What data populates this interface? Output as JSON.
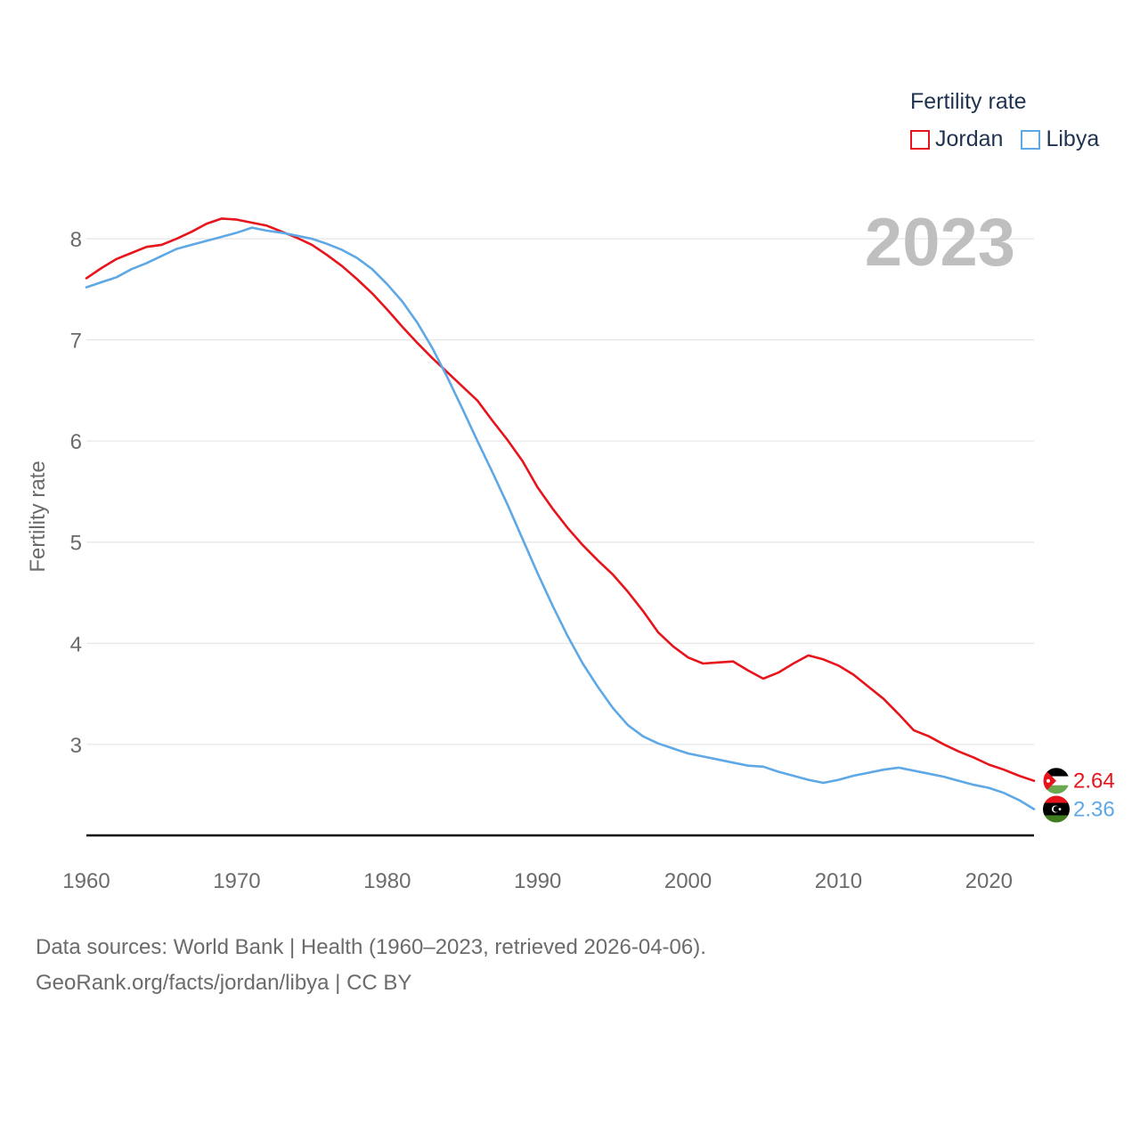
{
  "chart_data": {
    "type": "line",
    "title": "",
    "ylabel": "Fertility rate",
    "xlabel": "",
    "year_label": "2023",
    "xlim": [
      1960,
      2023
    ],
    "ylim": [
      2.1,
      8.6
    ],
    "x_ticks": [
      1960,
      1970,
      1980,
      1990,
      2000,
      2010,
      2020
    ],
    "y_ticks": [
      3,
      4,
      5,
      6,
      7,
      8
    ],
    "legend_title": "Fertility rate",
    "legend_position": "top-right",
    "x": [
      1960,
      1961,
      1962,
      1963,
      1964,
      1965,
      1966,
      1967,
      1968,
      1969,
      1970,
      1971,
      1972,
      1973,
      1974,
      1975,
      1976,
      1977,
      1978,
      1979,
      1980,
      1981,
      1982,
      1983,
      1984,
      1985,
      1986,
      1987,
      1988,
      1989,
      1990,
      1991,
      1992,
      1993,
      1994,
      1995,
      1996,
      1997,
      1998,
      1999,
      2000,
      2001,
      2002,
      2003,
      2004,
      2005,
      2006,
      2007,
      2008,
      2009,
      2010,
      2011,
      2012,
      2013,
      2014,
      2015,
      2016,
      2017,
      2018,
      2019,
      2020,
      2021,
      2022,
      2023
    ],
    "series": [
      {
        "name": "Jordan",
        "color": "#e8141c",
        "end_label": "2.64",
        "values": [
          7.61,
          7.71,
          7.8,
          7.86,
          7.92,
          7.94,
          8.0,
          8.07,
          8.15,
          8.2,
          8.19,
          8.16,
          8.13,
          8.07,
          8.01,
          7.94,
          7.84,
          7.73,
          7.6,
          7.46,
          7.3,
          7.13,
          6.97,
          6.82,
          6.68,
          6.54,
          6.4,
          6.2,
          6.01,
          5.8,
          5.54,
          5.33,
          5.14,
          4.97,
          4.82,
          4.68,
          4.51,
          4.32,
          4.11,
          3.97,
          3.86,
          3.8,
          3.81,
          3.82,
          3.73,
          3.65,
          3.71,
          3.8,
          3.88,
          3.84,
          3.78,
          3.69,
          3.57,
          3.45,
          3.3,
          3.14,
          3.08,
          3.0,
          2.93,
          2.87,
          2.8,
          2.75,
          2.69,
          2.64
        ]
      },
      {
        "name": "Libya",
        "color": "#5ea8e6",
        "end_label": "2.36",
        "values": [
          7.52,
          7.57,
          7.62,
          7.7,
          7.76,
          7.83,
          7.9,
          7.94,
          7.98,
          8.02,
          8.06,
          8.11,
          8.08,
          8.06,
          8.03,
          8.0,
          7.95,
          7.89,
          7.81,
          7.7,
          7.55,
          7.38,
          7.17,
          6.92,
          6.63,
          6.32,
          6.0,
          5.69,
          5.37,
          5.03,
          4.69,
          4.37,
          4.07,
          3.8,
          3.57,
          3.36,
          3.19,
          3.08,
          3.01,
          2.96,
          2.91,
          2.88,
          2.85,
          2.82,
          2.79,
          2.78,
          2.73,
          2.69,
          2.65,
          2.62,
          2.65,
          2.69,
          2.72,
          2.75,
          2.77,
          2.74,
          2.71,
          2.68,
          2.64,
          2.6,
          2.57,
          2.52,
          2.45,
          2.36
        ]
      }
    ]
  },
  "sources": {
    "line1": "Data sources: World Bank | Health (1960–2023, retrieved 2026-04-06).",
    "line2": "GeoRank.org/facts/jordan/libya | CC BY"
  }
}
